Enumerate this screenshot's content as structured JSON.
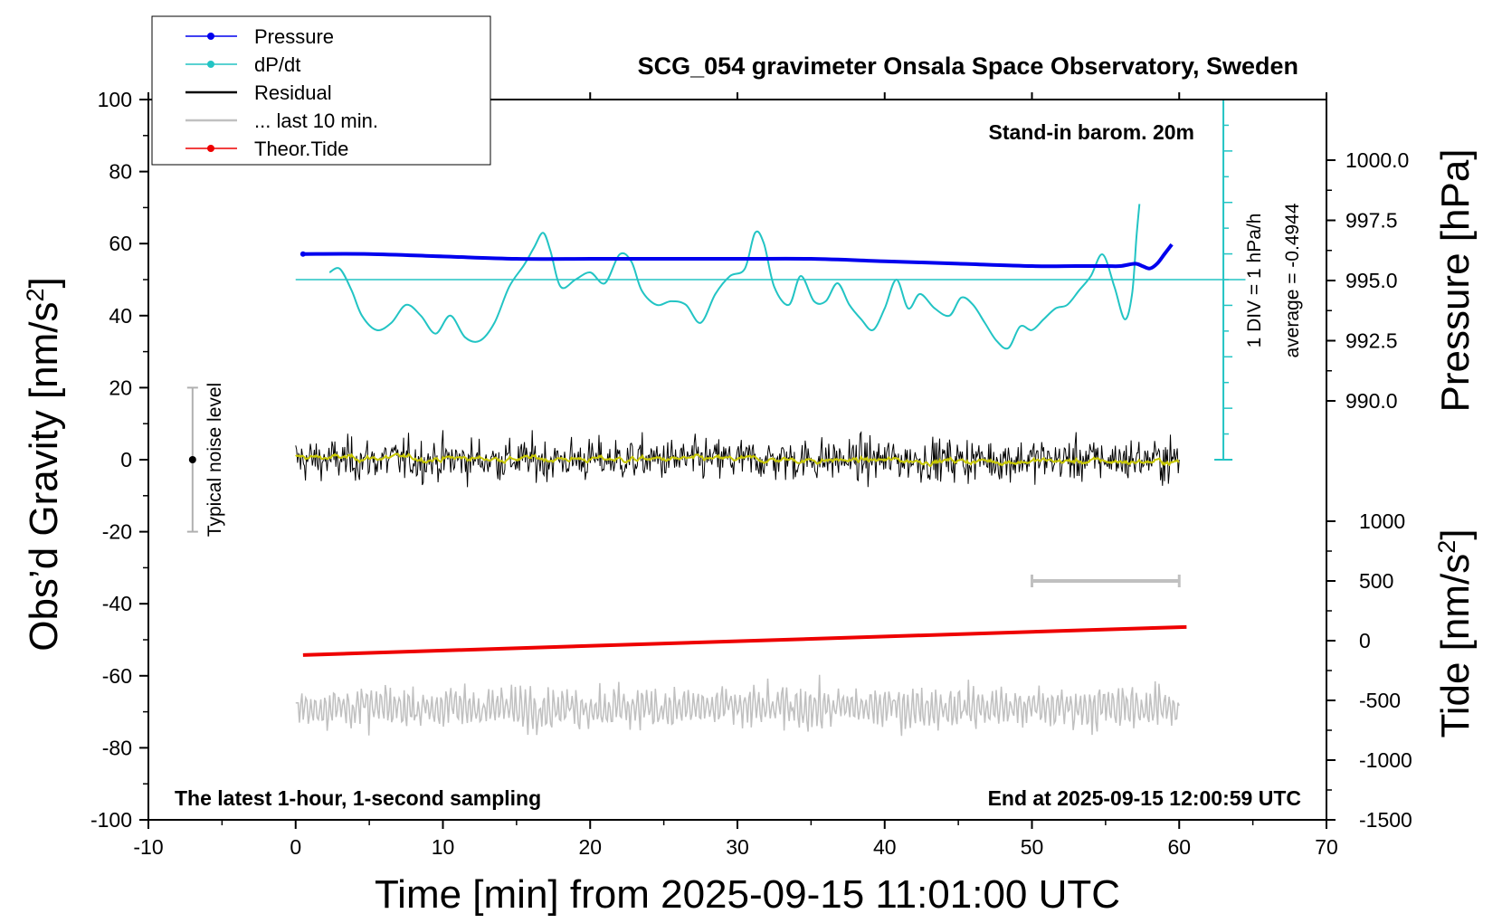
{
  "chart_data": {
    "type": "line",
    "title": "SCG_054 gravimeter Onsala Space Observatory, Sweden",
    "xlabel": "Time [min] from 2025-09-15 11:01:00 UTC",
    "ylabel_left": "Obs’d Gravity [nm/s",
    "ylabel_left_sup": "2",
    "ylabel_left_end": "]",
    "ylabel_pressure": "Pressure [hPa]",
    "ylabel_tide": "Tide [nm/s",
    "ylabel_tide_sup": "2",
    "ylabel_tide_end": "]",
    "xlim": [
      -10,
      70
    ],
    "ylim_gravity": [
      -100,
      100
    ],
    "ylim_pressure_visible": [
      990.0,
      1000.0
    ],
    "ylim_tide": [
      -1500,
      1000
    ],
    "x_ticks": [
      "-10",
      "0",
      "10",
      "20",
      "30",
      "40",
      "50",
      "60",
      "70"
    ],
    "gravity_ticks": [
      "100",
      "80",
      "60",
      "40",
      "20",
      "0",
      "-20",
      "-40",
      "-60",
      "-80",
      "-100"
    ],
    "pressure_ticks": [
      "1000.0",
      "997.5",
      "995.0",
      "992.5",
      "990.0"
    ],
    "tide_ticks": [
      "1000",
      "500",
      "0",
      "-500",
      "-1000",
      "-1500"
    ],
    "legend": {
      "position": "top-left",
      "entries": [
        {
          "label": "Pressure",
          "color": "#0000ee",
          "marker": true
        },
        {
          "label": "dP/dt",
          "color": "#22c4c4",
          "marker": true
        },
        {
          "label": "Residual",
          "color": "#000000",
          "marker": false
        },
        {
          "label": "... last 10 min.",
          "color": "#c0c0c0",
          "marker": false
        },
        {
          "label": "Theor.Tide",
          "color": "#ee0000",
          "marker": true
        }
      ]
    },
    "annotations": {
      "barometer": "Stand-in barom. 20m",
      "dpdt_div": "1 DIV = 1 hPa/h",
      "dpdt_avg": "average = -0.4944",
      "noise": "Typical noise level",
      "bottom_left": "The latest 1-hour, 1-second sampling",
      "bottom_right": "End at 2025-09-15 12:00:59 UTC"
    },
    "colors": {
      "pressure": "#0000ee",
      "dpdt": "#22c4c4",
      "residual": "#000000",
      "residual_mean": "#c8c800",
      "last10": "#c0c0c0",
      "tide": "#ee0000"
    },
    "noise_bar": {
      "x": -7,
      "center": 0,
      "half_range": 20
    },
    "last10_bar": {
      "x_start": 50,
      "x_end": 60,
      "tide_value": 500
    },
    "series": [
      {
        "name": "Pressure",
        "axis": "pressure",
        "x": [
          0.5,
          5,
          10,
          15,
          20,
          25,
          30,
          35,
          40,
          45,
          50,
          53,
          55,
          56,
          57,
          57.5,
          58,
          58.5,
          59,
          59.5
        ],
        "values": [
          996.1,
          996.1,
          996.0,
          995.9,
          995.9,
          995.9,
          995.9,
          995.9,
          995.8,
          995.7,
          995.6,
          995.6,
          995.6,
          995.6,
          995.7,
          995.6,
          995.5,
          995.7,
          996.1,
          996.5
        ]
      },
      {
        "name": "dP/dt",
        "axis": "gravity",
        "baseline_gravity": 50,
        "x": [
          2.3,
          3,
          3.8,
          4.5,
          5.5,
          6.5,
          7.5,
          8.5,
          9.5,
          10.5,
          11.5,
          12.5,
          13.5,
          14.5,
          15.5,
          16.2,
          16.8,
          17.3,
          18,
          19,
          20,
          21,
          22,
          22.8,
          23.5,
          24.5,
          25.5,
          26.5,
          27.5,
          28.5,
          29.5,
          30.5,
          31.2,
          31.8,
          32.5,
          33.5,
          34.3,
          35.2,
          36,
          36.8,
          37.6,
          38.4,
          39.2,
          40,
          40.8,
          41.6,
          42.4,
          43.4,
          44.4,
          45.2,
          46,
          46.8,
          47.6,
          48.4,
          49.2,
          50,
          50.8,
          51.6,
          52.4,
          53.2,
          54,
          54.8,
          55.6,
          56.3,
          56.8,
          57.1,
          57.3
        ],
        "values": [
          52,
          53,
          47,
          40,
          36,
          38,
          43,
          40,
          35,
          40,
          34,
          33,
          38,
          48,
          54,
          59,
          63,
          58,
          48,
          50,
          52,
          49,
          57,
          55,
          47,
          43,
          44,
          43,
          38,
          46,
          51,
          53,
          63,
          60,
          48,
          43,
          51,
          44,
          44,
          49,
          43,
          39,
          36,
          42,
          50,
          42,
          46,
          42,
          40,
          45,
          43,
          38,
          33,
          31,
          37,
          36,
          39,
          42,
          43,
          47,
          51,
          57,
          48,
          39,
          46,
          62,
          71
        ]
      },
      {
        "name": "Theor.Tide",
        "axis": "tide",
        "x": [
          0.5,
          60.5
        ],
        "values": [
          -120,
          115
        ]
      }
    ],
    "residual_description": "~1-second residual trace, roughly within -18 to +25 nm/s2 around 0, with a smoothed running mean near 0",
    "last10_description": "last 10 minutes of residual replotted at tide level, roughly -840 to -285 on tide axis"
  }
}
